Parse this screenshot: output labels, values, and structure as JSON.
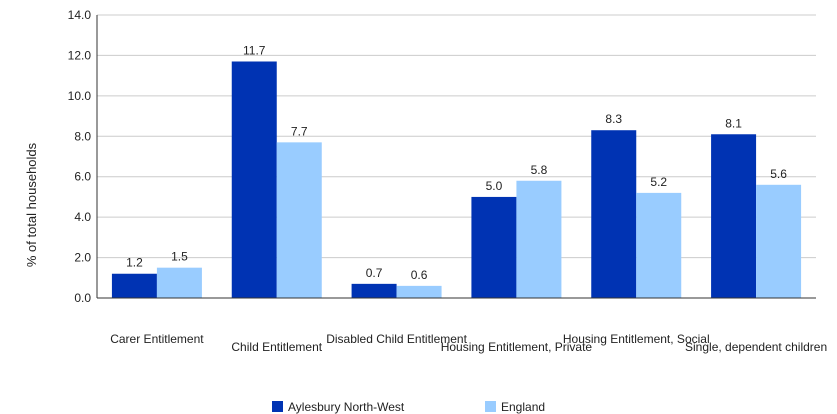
{
  "chart_data": {
    "type": "bar",
    "title": "",
    "xlabel": "",
    "ylabel": "% of total households",
    "ylim": [
      0,
      14
    ],
    "yticks": [
      "0.0",
      "2.0",
      "4.0",
      "6.0",
      "8.0",
      "10.0",
      "12.0",
      "14.0"
    ],
    "grid": true,
    "legend_position": "bottom",
    "categories": [
      "Carer Entitlement",
      "Child Entitlement",
      "Disabled Child Entitlement",
      "Housing Entitlement, Private",
      "Housing Entitlement, Social",
      "Single, dependent children"
    ],
    "series": [
      {
        "name": "Aylesbury North-West",
        "color": "#0033b3",
        "values": [
          1.2,
          11.7,
          0.7,
          5.0,
          8.3,
          8.1
        ],
        "labels": [
          "1.2",
          "11.7",
          "0.7",
          "5.0",
          "8.3",
          "8.1"
        ]
      },
      {
        "name": "England",
        "color": "#99ccff",
        "values": [
          1.5,
          7.7,
          0.6,
          5.8,
          5.2,
          5.6
        ],
        "labels": [
          "1.5",
          "7.7",
          "0.6",
          "5.8",
          "5.2",
          "5.6"
        ]
      }
    ]
  }
}
